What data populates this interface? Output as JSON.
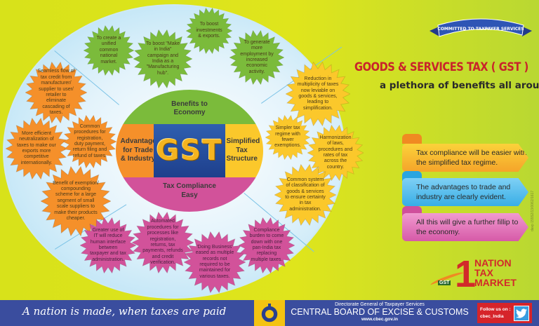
{
  "center": {
    "logo": "GST",
    "top": "Benefits to Economy",
    "left": "Advantages for Trade & Industry",
    "right": "Simplified Tax Structure",
    "bottom": "Tax Compliance Easy"
  },
  "benefits_to_economy": [
    "To create a unified common national market.",
    "To boost \"Make in India\" campaign and India as a \"Manufacturing hub\".",
    "To boost investments & exports.",
    "To generate more employment by increased economic activity."
  ],
  "advantages_for_trade": [
    "Seamless flow of tax credit from manufacturer/ supplier to user/ retailer to eliminate cascading of taxes.",
    "More efficient neutralization of taxes to make our exports more competitive internationally.",
    "Common procedures for registration, duty payment, return filing and refund of taxes.",
    "Benefit of exemption/ compounding scheme for a large segment of small scale suppliers to make their products cheaper."
  ],
  "simplified_tax_structure": [
    "Reduction in multiplicity of taxes now leviable on goods & services, leading to simplification.",
    "Simpler tax regime with fewer exemptions.",
    "Harmonization of laws, procedures and rates of tax across the country.",
    "Common system of classification of goods & services to ensure certainty in tax administration."
  ],
  "tax_compliance_easy": [
    "Greater use of IT will reduce human interface between taxpayer and tax administration.",
    "Automated procedures for processes like registration, returns, tax payments, refunds and credit verification.",
    "'Doing Business' eased as multiple records not required to be maintained for various taxes.",
    "Compliance burden to come down with one pan-India tax replacing multiple taxes."
  ],
  "banner": "COMMITTED TO TAXPAYER SERVICES",
  "title": "GOODS & SERVICES TAX ( GST )",
  "subtitle": "a plethora of benefits all around",
  "ribbons": [
    "Tax compliance will be easier with the simplified tax regime.",
    "The advantages to trade and industry are clearly evident.",
    "All this will give a further fillip to the economy."
  ],
  "logo": {
    "digit": "1",
    "line1": "NATION",
    "line2": "TAX",
    "line3": "MARKET",
    "badge": "GST"
  },
  "davp": "davp 15552/13/0062/1617",
  "footer": {
    "slogan": "A nation is made, when taxes are paid",
    "directorate": "Directorate General of Taxpayer Services",
    "org": "CENTRAL BOARD OF EXCISE & CUSTOMS",
    "url": "www.cbec.gov.in",
    "follow": "Follow us on :",
    "handle": "cbec_India"
  },
  "colors": {
    "green": "#7bbb3b",
    "orange": "#f5902a",
    "yellow": "#fbc82b",
    "pink": "#d2529a",
    "title": "#c8242b",
    "footer": "#3a4d9e"
  }
}
